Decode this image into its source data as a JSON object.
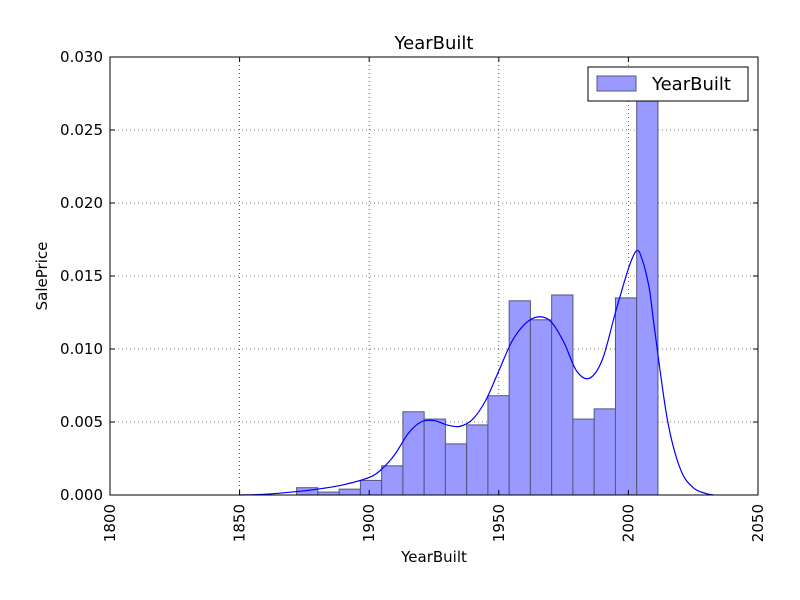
{
  "chart_data": {
    "type": "bar",
    "title": "YearBuilt",
    "xlabel": "YearBuilt",
    "ylabel": "SalePrice",
    "xlim": [
      1800,
      2050
    ],
    "ylim": [
      0,
      0.03
    ],
    "xticks": [
      "1800",
      "1850",
      "1900",
      "1950",
      "2000",
      "2050"
    ],
    "yticks": [
      "0.000",
      "0.005",
      "0.010",
      "0.015",
      "0.020",
      "0.025",
      "0.030"
    ],
    "grid": true,
    "legend": {
      "position": "top-right",
      "entries": [
        "YearBuilt"
      ]
    },
    "colors": {
      "bar_fill": "#9999ff",
      "bar_edge": "#555577",
      "kde_line": "#0000ff"
    },
    "histogram": {
      "bin_edges": [
        1872,
        1880.2,
        1888.4,
        1896.6,
        1904.8,
        1913,
        1921.2,
        1929.4,
        1937.6,
        1945.8,
        1954,
        1962.2,
        1970.4,
        1978.6,
        1986.8,
        1995,
        2003.2,
        2011.4
      ],
      "values": [
        0.0005,
        0.0002,
        0.0004,
        0.001,
        0.002,
        0.0057,
        0.0052,
        0.0035,
        0.0048,
        0.0068,
        0.0133,
        0.012,
        0.0137,
        0.0052,
        0.0059,
        0.0135,
        0.0271
      ]
    },
    "kde": {
      "x": [
        1850,
        1860,
        1870,
        1880,
        1890,
        1900,
        1905,
        1910,
        1915,
        1920,
        1925,
        1930,
        1935,
        1940,
        1945,
        1950,
        1955,
        1960,
        1965,
        1970,
        1975,
        1980,
        1985,
        1990,
        1995,
        2000,
        2003,
        2005,
        2008,
        2010,
        2015,
        2020,
        2025,
        2030,
        2033
      ],
      "y": [
        0.0,
        5e-05,
        0.0002,
        0.0004,
        0.0007,
        0.0012,
        0.0018,
        0.0028,
        0.0042,
        0.005,
        0.0051,
        0.0048,
        0.0047,
        0.0052,
        0.0065,
        0.0085,
        0.0105,
        0.0117,
        0.0122,
        0.0119,
        0.0105,
        0.0085,
        0.008,
        0.0093,
        0.0125,
        0.0155,
        0.0167,
        0.0163,
        0.0142,
        0.0115,
        0.0052,
        0.0018,
        0.0005,
        0.0001,
        0.0
      ]
    }
  }
}
